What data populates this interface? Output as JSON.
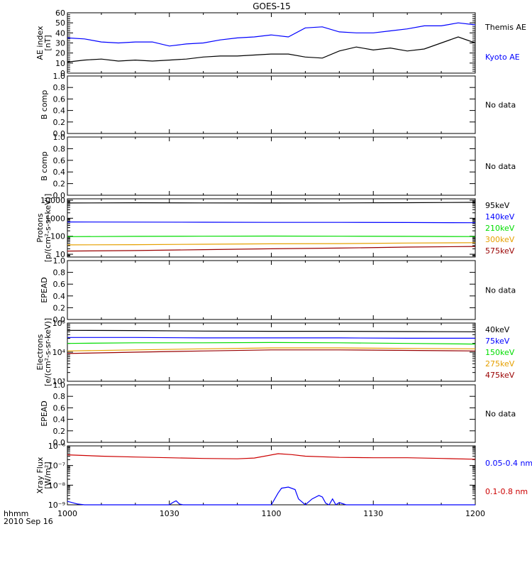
{
  "title": "GOES-15",
  "time_label": "hhmm",
  "date_label": "2010 Sep 16",
  "x_ticks": [
    {
      "t": 0,
      "label": "1000"
    },
    {
      "t": 30,
      "label": "1030"
    },
    {
      "t": 60,
      "label": "1100"
    },
    {
      "t": 90,
      "label": "1130"
    },
    {
      "t": 120,
      "label": "1200"
    }
  ],
  "colors": {
    "black": "#000000",
    "blue": "#0000ff",
    "red": "#cc0000",
    "orange": "#e6a000",
    "green": "#00dd00",
    "darkred": "#990000"
  },
  "chart_data": [
    {
      "type": "line",
      "id": "ae",
      "ylabel": [
        "AE index",
        "[nT]"
      ],
      "ylim": [
        0,
        60
      ],
      "scale": "linear",
      "yticks": [
        {
          "v": 0,
          "label": "0"
        },
        {
          "v": 10,
          "label": "10"
        },
        {
          "v": 20,
          "label": "20"
        },
        {
          "v": 30,
          "label": "30"
        },
        {
          "v": 40,
          "label": "40"
        },
        {
          "v": 50,
          "label": "50"
        },
        {
          "v": 60,
          "label": "60"
        }
      ],
      "series": [
        {
          "name": "Kyoto AE",
          "color": "#0000ff",
          "x": [
            0,
            5,
            10,
            15,
            20,
            25,
            30,
            35,
            40,
            45,
            50,
            55,
            60,
            65,
            70,
            75,
            80,
            85,
            90,
            95,
            100,
            105,
            110,
            115,
            120
          ],
          "values": [
            35,
            34,
            31,
            30,
            31,
            31,
            27,
            29,
            30,
            33,
            35,
            36,
            38,
            36,
            45,
            46,
            41,
            40,
            40,
            42,
            44,
            47,
            47,
            50,
            48
          ]
        },
        {
          "name": "Themis AE",
          "color": "#000000",
          "x": [
            0,
            5,
            10,
            15,
            20,
            25,
            30,
            35,
            40,
            45,
            50,
            55,
            60,
            65,
            70,
            75,
            80,
            85,
            90,
            95,
            100,
            105,
            110,
            115,
            120
          ],
          "values": [
            11,
            13,
            14,
            12,
            13,
            12,
            13,
            14,
            16,
            17,
            17,
            18,
            19,
            19,
            16,
            15,
            22,
            26,
            23,
            25,
            22,
            24,
            30,
            36,
            30
          ]
        }
      ]
    },
    {
      "type": "line",
      "id": "bcomp1",
      "ylabel": [
        "B comp"
      ],
      "ylim": [
        0,
        1.0
      ],
      "scale": "linear",
      "yticks": [
        {
          "v": 0,
          "label": "0.0"
        },
        {
          "v": 0.2,
          "label": "0.2"
        },
        {
          "v": 0.4,
          "label": "0.4"
        },
        {
          "v": 0.6,
          "label": "0.6"
        },
        {
          "v": 0.8,
          "label": "0.8"
        },
        {
          "v": 1.0,
          "label": "1.0"
        }
      ],
      "note": "No data",
      "series": []
    },
    {
      "type": "line",
      "id": "bcomp2",
      "ylabel": [
        "B comp"
      ],
      "ylim": [
        0,
        1.0
      ],
      "scale": "linear",
      "yticks": [
        {
          "v": 0,
          "label": "0.0"
        },
        {
          "v": 0.2,
          "label": "0.2"
        },
        {
          "v": 0.4,
          "label": "0.4"
        },
        {
          "v": 0.6,
          "label": "0.6"
        },
        {
          "v": 0.8,
          "label": "0.8"
        },
        {
          "v": 1.0,
          "label": "1.0"
        }
      ],
      "note": "No data",
      "series": []
    },
    {
      "type": "line",
      "id": "protons",
      "ylabel": [
        "Protons",
        "[p/(cm²-s-sr-keV)]"
      ],
      "ylim": [
        7,
        12000
      ],
      "scale": "log",
      "yticks": [
        {
          "v": 10,
          "label": "10"
        },
        {
          "v": 100,
          "label": "100"
        },
        {
          "v": 1000,
          "label": "1000"
        },
        {
          "v": 10000,
          "label": "10000"
        }
      ],
      "series": [
        {
          "name": "575keV",
          "color": "#990000",
          "x": [
            0,
            20,
            40,
            60,
            80,
            100,
            120
          ],
          "values": [
            15,
            16,
            18,
            20,
            22,
            25,
            27
          ]
        },
        {
          "name": "300keV",
          "color": "#e6a000",
          "x": [
            0,
            20,
            40,
            60,
            80,
            100,
            120
          ],
          "values": [
            33,
            34,
            36,
            38,
            39,
            42,
            44
          ]
        },
        {
          "name": "210keV",
          "color": "#00dd00",
          "x": [
            0,
            20,
            40,
            60,
            80,
            100,
            120
          ],
          "values": [
            95,
            98,
            100,
            102,
            100,
            98,
            96
          ]
        },
        {
          "name": "140keV",
          "color": "#0000ff",
          "x": [
            0,
            20,
            40,
            60,
            80,
            100,
            120
          ],
          "values": [
            620,
            610,
            600,
            590,
            590,
            580,
            560
          ]
        },
        {
          "name": "95keV",
          "color": "#000000",
          "x": [
            0,
            20,
            40,
            60,
            80,
            100,
            120
          ],
          "values": [
            7000,
            7200,
            7100,
            7000,
            7100,
            7300,
            7600
          ]
        }
      ]
    },
    {
      "type": "line",
      "id": "epead1",
      "ylabel": [
        "EPEAD"
      ],
      "ylim": [
        0,
        1.0
      ],
      "scale": "linear",
      "yticks": [
        {
          "v": 0,
          "label": "0.0"
        },
        {
          "v": 0.2,
          "label": "0.2"
        },
        {
          "v": 0.4,
          "label": "0.4"
        },
        {
          "v": 0.6,
          "label": "0.6"
        },
        {
          "v": 0.8,
          "label": "0.8"
        },
        {
          "v": 1.0,
          "label": "1.0"
        }
      ],
      "note": "No data",
      "series": []
    },
    {
      "type": "line",
      "id": "electrons",
      "ylabel": [
        "Electrons",
        "[e/(cm²-s-sr-keV)]"
      ],
      "ylim": [
        1000,
        100000
      ],
      "scale": "log",
      "yticks": [
        {
          "v": 1000,
          "label": "10³"
        },
        {
          "v": 10000,
          "label": "10⁴"
        },
        {
          "v": 100000,
          "label": "10⁵"
        }
      ],
      "series": [
        {
          "name": "475keV",
          "color": "#990000",
          "x": [
            0,
            20,
            40,
            60,
            80,
            100,
            120
          ],
          "values": [
            9000,
            10000,
            11000,
            12000,
            12000,
            11500,
            11000
          ]
        },
        {
          "name": "275keV",
          "color": "#e6a000",
          "x": [
            0,
            20,
            40,
            60,
            80,
            100,
            120
          ],
          "values": [
            11000,
            12000,
            13000,
            14000,
            14000,
            13500,
            13000
          ]
        },
        {
          "name": "150keV",
          "color": "#00dd00",
          "x": [
            0,
            20,
            40,
            60,
            80,
            100,
            120
          ],
          "values": [
            20000,
            21000,
            21000,
            21500,
            21000,
            20000,
            19000
          ]
        },
        {
          "name": "75keV",
          "color": "#0000ff",
          "x": [
            0,
            20,
            40,
            60,
            80,
            100,
            120
          ],
          "values": [
            32000,
            32000,
            31000,
            31000,
            31000,
            30000,
            30000
          ]
        },
        {
          "name": "40keV",
          "color": "#000000",
          "x": [
            0,
            20,
            40,
            60,
            80,
            100,
            120
          ],
          "values": [
            56000,
            55000,
            53000,
            52000,
            52000,
            51000,
            50000
          ]
        }
      ]
    },
    {
      "type": "line",
      "id": "epead2",
      "ylabel": [
        "EPEAD"
      ],
      "ylim": [
        0,
        1.0
      ],
      "scale": "linear",
      "yticks": [
        {
          "v": 0,
          "label": "0.0"
        },
        {
          "v": 0.2,
          "label": "0.2"
        },
        {
          "v": 0.4,
          "label": "0.4"
        },
        {
          "v": 0.6,
          "label": "0.6"
        },
        {
          "v": 0.8,
          "label": "0.8"
        },
        {
          "v": 1.0,
          "label": "1.0"
        }
      ],
      "note": "No data",
      "series": []
    },
    {
      "type": "line",
      "id": "xray",
      "ylabel": [
        "Xray Flux",
        "[W/m²]"
      ],
      "ylim": [
        1e-09,
        1e-06
      ],
      "scale": "log",
      "yticks": [
        {
          "v": 1e-09,
          "label": "10⁻⁹"
        },
        {
          "v": 1e-08,
          "label": "10⁻⁸"
        },
        {
          "v": 1e-07,
          "label": "10⁻⁷"
        },
        {
          "v": 1e-06,
          "label": "10⁻⁶"
        }
      ],
      "series": [
        {
          "name": "0.1-0.8 nm",
          "color": "#cc0000",
          "x": [
            0,
            10,
            20,
            30,
            40,
            50,
            55,
            62,
            66,
            70,
            80,
            90,
            100,
            110,
            120
          ],
          "values": [
            3.5e-07,
            3e-07,
            2.7e-07,
            2.5e-07,
            2.3e-07,
            2.2e-07,
            2.4e-07,
            4e-07,
            3.6e-07,
            3e-07,
            2.6e-07,
            2.5e-07,
            2.5e-07,
            2.3e-07,
            2.1e-07
          ]
        },
        {
          "name": "0.05-0.4 nm",
          "color": "#0000ff",
          "x": [
            0,
            3,
            5,
            30,
            31,
            32,
            33,
            34,
            60,
            62,
            63,
            65,
            67,
            68,
            70,
            72,
            74,
            75,
            76,
            77,
            78,
            79,
            80,
            82,
            85,
            120
          ],
          "values": [
            1.5e-09,
            1.1e-09,
            1e-09,
            1e-09,
            1.3e-09,
            1.6e-09,
            1.1e-09,
            1e-09,
            1e-09,
            4e-09,
            7e-09,
            8e-09,
            6e-09,
            2e-09,
            1e-09,
            2e-09,
            3e-09,
            2.5e-09,
            1.2e-09,
            1e-09,
            2e-09,
            1e-09,
            1.3e-09,
            1e-09,
            1e-09,
            1e-09
          ]
        }
      ]
    }
  ]
}
